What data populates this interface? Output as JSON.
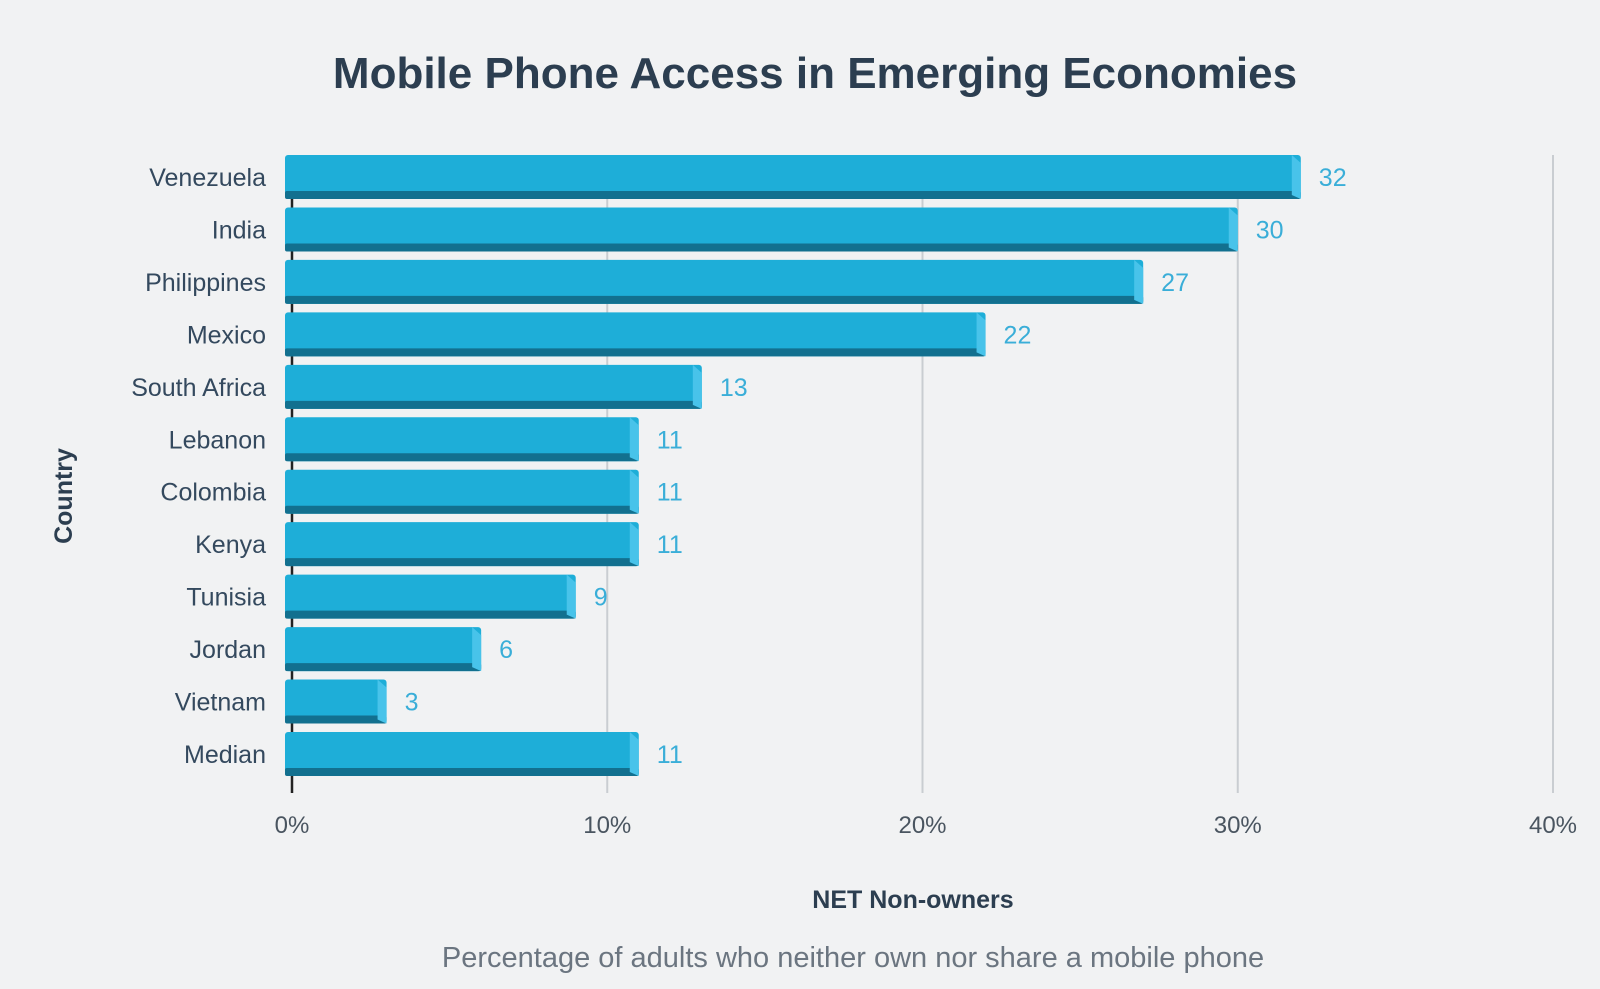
{
  "chart_data": {
    "type": "bar",
    "orientation": "horizontal",
    "title": "Mobile Phone Access in Emerging Economies",
    "caption": "Percentage of adults who neither own nor share a mobile phone",
    "xlabel": "NET Non-owners",
    "ylabel": "Country",
    "categories": [
      "Venezuela",
      "India",
      "Philippines",
      "Mexico",
      "South Africa",
      "Lebanon",
      "Colombia",
      "Kenya",
      "Tunisia",
      "Jordan",
      "Vietnam",
      "Median"
    ],
    "values": [
      32,
      30,
      27,
      22,
      13,
      11,
      11,
      11,
      9,
      6,
      3,
      11
    ],
    "xlim": [
      0,
      40
    ],
    "xticks": [
      "0%",
      "10%",
      "20%",
      "30%",
      "40%"
    ],
    "grid": true,
    "legend": "none",
    "colors": {
      "bar": "#1eaed8",
      "bar_shadow": "#12708f",
      "bar_edge": "#48c3ea",
      "value_label": "#3aaed8",
      "grid": "#c9cdd1"
    }
  }
}
